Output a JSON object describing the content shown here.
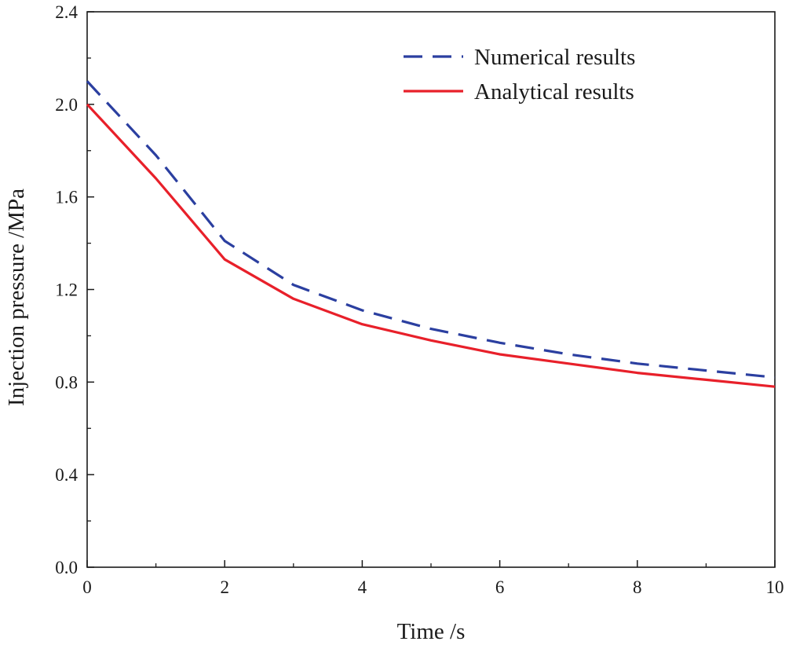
{
  "chart_data": {
    "type": "line",
    "title": "",
    "xlabel": "Time /s",
    "ylabel": "Injection pressure /MPa",
    "xlim": [
      0,
      10
    ],
    "ylim": [
      0,
      2.4
    ],
    "xticks": [
      0,
      2,
      4,
      6,
      8,
      10
    ],
    "xtick_labels": [
      "0",
      "2",
      "4",
      "6",
      "8",
      "10"
    ],
    "yticks": [
      0.0,
      0.4,
      0.8,
      1.2,
      1.6,
      2.0,
      2.4
    ],
    "ytick_labels": [
      "0.0",
      "0.4",
      "0.8",
      "1.2",
      "1.6",
      "2.0",
      "2.4"
    ],
    "grid": false,
    "legend_position": "top-right",
    "series": [
      {
        "name": "Numerical results",
        "style": "dashed",
        "color": "#2b3fa0",
        "x": [
          0,
          1,
          2,
          3,
          4,
          5,
          6,
          7,
          8,
          9,
          10
        ],
        "y": [
          2.1,
          1.78,
          1.41,
          1.22,
          1.11,
          1.03,
          0.97,
          0.92,
          0.88,
          0.85,
          0.82
        ]
      },
      {
        "name": "Analytical results",
        "style": "solid",
        "color": "#e8202a",
        "x": [
          0,
          1,
          2,
          3,
          4,
          5,
          6,
          7,
          8,
          9,
          10
        ],
        "y": [
          2.0,
          1.68,
          1.33,
          1.16,
          1.05,
          0.98,
          0.92,
          0.88,
          0.84,
          0.81,
          0.78
        ]
      }
    ]
  }
}
